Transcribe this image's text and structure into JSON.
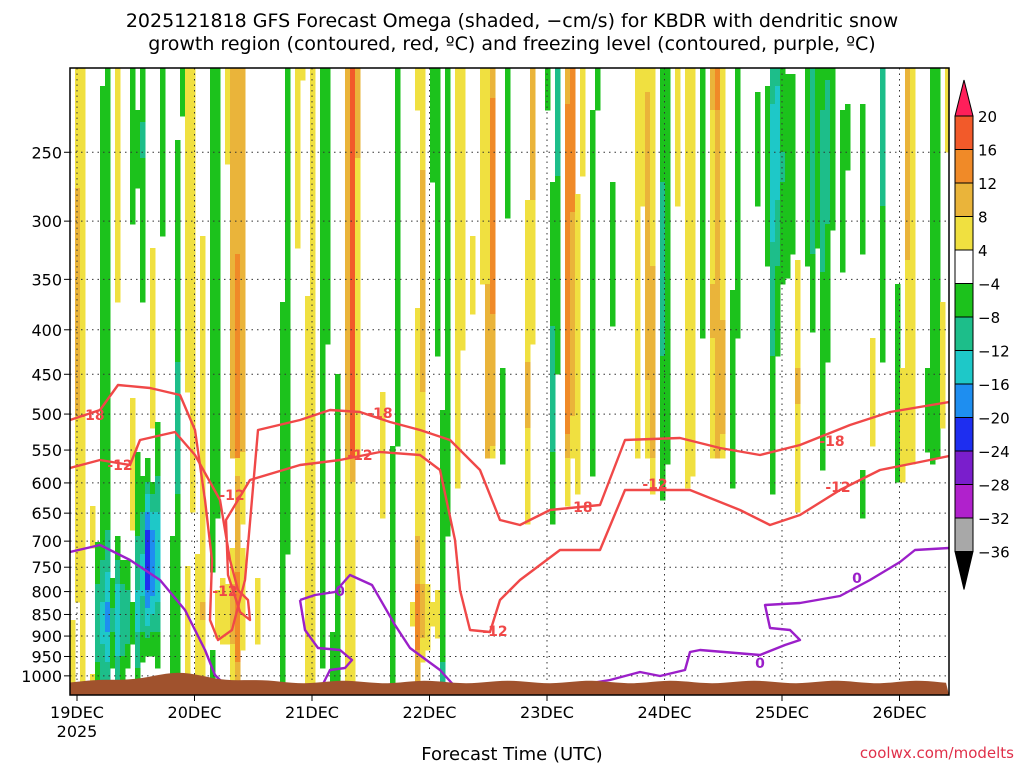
{
  "chart_data": {
    "type": "heatmap",
    "title_line1": "2025121818 GFS Forecast Omega (shaded, −cm/s) for KBDR with dendritic snow",
    "title_line2": "growth region (contoured, red, ºC) and freezing level (contoured, purple, ºC)",
    "xlabel": "Forecast Time (UTC)",
    "ylabel": "",
    "x_ticks": [
      "19DEC",
      "20DEC",
      "21DEC",
      "22DEC",
      "23DEC",
      "24DEC",
      "25DEC",
      "26DEC"
    ],
    "x_year_label": "2025",
    "y_ticks": [
      250,
      300,
      350,
      400,
      450,
      500,
      550,
      600,
      650,
      700,
      750,
      800,
      850,
      900,
      950,
      1000
    ],
    "yscale": "log-pressure (inverted)",
    "grid": true,
    "colorbar": {
      "levels": [
        20,
        16,
        12,
        8,
        4,
        -4,
        -8,
        -12,
        -16,
        -20,
        -24,
        -28,
        -32,
        -36
      ],
      "colors": [
        "#ff1f5a",
        "#f25a2a",
        "#f08a28",
        "#eab43a",
        "#f0e040",
        "#ffffff",
        "#1cc21c",
        "#1dbe8a",
        "#1ec8c8",
        "#1e8ef0",
        "#1e2ef0",
        "#7a1ecc",
        "#b021cc",
        "#a8a8a8",
        "#000000"
      ]
    },
    "contour_labels_red": [
      "-18",
      "-12"
    ],
    "contour_labels_purple": [
      "0"
    ],
    "credit": "coolwx.com/modelts"
  }
}
